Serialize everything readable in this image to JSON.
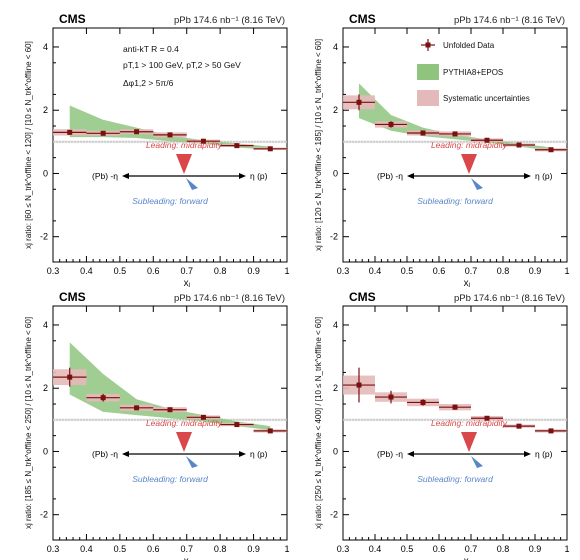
{
  "common": {
    "cms": "CMS",
    "header": "pPb 174.6 nb⁻¹ (8.16 TeV)",
    "xlabel": "xⱼ",
    "xticks": [
      "0.3",
      "0.4",
      "0.5",
      "0.6",
      "0.7",
      "0.8",
      "0.9",
      "1"
    ],
    "yticks": [
      "-2",
      "0",
      "2",
      "4"
    ],
    "leading": "Leading: midrapidity",
    "subleading": "Subleading: forward",
    "eta_left": "(Pb) -η",
    "eta_right": "η (p)",
    "annotation": {
      "line1": "anti-kT R = 0.4",
      "line2": "pT,1 > 100 GeV, pT,2 > 50 GeV",
      "line3": "Δφ1,2 > 5π/6"
    },
    "legend": {
      "data": "Unfolded Data",
      "model": "PYTHIA8+EPOS",
      "syst": "Systematic uncertainties"
    }
  },
  "colors": {
    "data": "#7a1010",
    "syst": "#e4b9b9",
    "model": "#8fc47f",
    "leading": "#d9474a",
    "subleading": "#5a86c9"
  },
  "chart_data": [
    {
      "type": "scatter",
      "ylabel": "xj ratio: [60 ≤ N_trk^offline < 120] / [10 ≤ N_trk^offline < 60]",
      "xlabel": "xj",
      "xlim": [
        0.3,
        1.0
      ],
      "ylim": [
        -2.8,
        4.6
      ],
      "x": [
        0.35,
        0.45,
        0.55,
        0.65,
        0.75,
        0.85,
        0.95
      ],
      "y": [
        1.3,
        1.27,
        1.32,
        1.22,
        1.02,
        0.88,
        0.78
      ],
      "syst": [
        0.1,
        0.08,
        0.08,
        0.08,
        0.05,
        0.04,
        0.04
      ],
      "stat": [
        0.05,
        0.04,
        0.04,
        0.04,
        0.03,
        0.03,
        0.03
      ],
      "model": {
        "x": [
          0.35,
          0.45,
          0.55,
          0.65,
          0.75,
          0.85,
          0.95
        ],
        "low": [
          1.15,
          1.15,
          1.12,
          1.02,
          0.95,
          0.82,
          0.75
        ],
        "high": [
          2.15,
          1.7,
          1.45,
          1.2,
          1.05,
          0.95,
          0.85
        ]
      }
    },
    {
      "type": "scatter",
      "ylabel": "xj ratio: [120 ≤ N_trk^offline < 185] / [10 ≤ N_trk^offline < 60]",
      "xlabel": "xj",
      "xlim": [
        0.3,
        1.0
      ],
      "ylim": [
        -2.8,
        4.6
      ],
      "x": [
        0.35,
        0.45,
        0.55,
        0.65,
        0.75,
        0.85,
        0.95
      ],
      "y": [
        2.25,
        1.55,
        1.28,
        1.25,
        1.05,
        0.9,
        0.75
      ],
      "syst": [
        0.22,
        0.1,
        0.08,
        0.08,
        0.06,
        0.05,
        0.05
      ],
      "stat": [
        0.25,
        0.1,
        0.06,
        0.05,
        0.04,
        0.04,
        0.04
      ],
      "model": {
        "x": [
          0.35,
          0.45,
          0.55,
          0.65,
          0.75,
          0.85,
          0.95
        ],
        "low": [
          1.75,
          1.35,
          1.18,
          1.08,
          0.98,
          0.85,
          0.72
        ],
        "high": [
          2.85,
          1.85,
          1.45,
          1.22,
          1.08,
          0.95,
          0.82
        ]
      }
    },
    {
      "type": "scatter",
      "ylabel": "xj ratio: [185 ≤ N_trk^offline < 250] / [10 ≤ N_trk^offline < 60]",
      "xlabel": "xj",
      "xlim": [
        0.3,
        1.0
      ],
      "ylim": [
        -2.8,
        4.6
      ],
      "x": [
        0.35,
        0.45,
        0.55,
        0.65,
        0.75,
        0.85,
        0.95
      ],
      "y": [
        2.35,
        1.7,
        1.38,
        1.32,
        1.08,
        0.85,
        0.65
      ],
      "syst": [
        0.25,
        0.12,
        0.1,
        0.08,
        0.06,
        0.05,
        0.05
      ],
      "stat": [
        0.3,
        0.12,
        0.07,
        0.06,
        0.05,
        0.04,
        0.04
      ],
      "model": {
        "x": [
          0.35,
          0.45,
          0.55,
          0.65,
          0.75,
          0.85,
          0.95
        ],
        "low": [
          1.8,
          1.25,
          1.15,
          1.05,
          0.95,
          0.8,
          0.68
        ],
        "high": [
          3.45,
          2.45,
          1.65,
          1.35,
          1.15,
          0.95,
          0.8
        ]
      }
    },
    {
      "type": "scatter",
      "ylabel": "xj ratio: [250 ≤ N_trk^offline < 400] / [10 ≤ N_trk^offline < 60]",
      "xlabel": "xj",
      "xlim": [
        0.3,
        1.0
      ],
      "ylim": [
        -2.8,
        4.6
      ],
      "x": [
        0.35,
        0.45,
        0.55,
        0.65,
        0.75,
        0.85,
        0.95
      ],
      "y": [
        2.1,
        1.72,
        1.55,
        1.4,
        1.05,
        0.8,
        0.65
      ],
      "syst": [
        0.3,
        0.15,
        0.12,
        0.1,
        0.07,
        0.05,
        0.05
      ],
      "stat": [
        0.55,
        0.2,
        0.1,
        0.08,
        0.06,
        0.05,
        0.05
      ],
      "model": null
    }
  ]
}
